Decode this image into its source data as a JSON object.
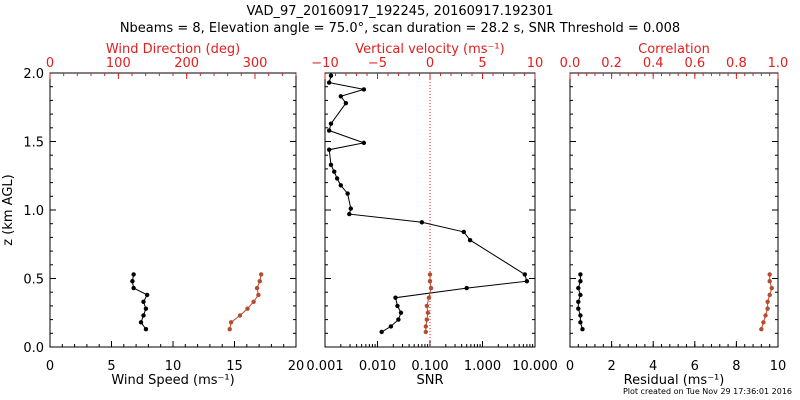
{
  "header": {
    "title_line1": "VAD_97_20160917_192245, 20160917.192301",
    "title_line2": "Nbeams = 8, Elevation angle = 75.0°, scan duration = 28.2 s, SNR Threshold = 0.008"
  },
  "footer": {
    "text": "Plot created on Tue Nov 29 17:36:01 2016"
  },
  "colors": {
    "red": "#e02020",
    "black": "#000000",
    "marker_red": "#b84a2e"
  },
  "chart_data": [
    {
      "type": "line",
      "id": "wind",
      "ylabel": "z (km AGL)",
      "ylim": [
        0,
        2.0
      ],
      "y_ticks": [
        0.0,
        0.5,
        1.0,
        1.5,
        2.0
      ],
      "y_tick_labels": [
        "0.0",
        "0.5",
        "1.0",
        "1.5",
        "2.0"
      ],
      "bottom_axis": {
        "label": "Wind Speed (ms⁻¹)",
        "range": [
          0,
          20
        ],
        "ticks": [
          0,
          5,
          10,
          15,
          20
        ],
        "tick_labels": [
          "0",
          "5",
          "10",
          "15",
          "20"
        ]
      },
      "top_axis": {
        "label": "Wind Direction (deg)",
        "range": [
          0,
          360
        ],
        "ticks": [
          0,
          100,
          200,
          300
        ],
        "tick_labels": [
          "0",
          "100",
          "200",
          "300"
        ],
        "color": "#e02020"
      },
      "series": [
        {
          "axis": "bottom",
          "color": "#000000",
          "x": [
            7.8,
            7.4,
            7.6,
            7.8,
            7.6,
            7.9,
            6.8,
            6.7,
            6.8
          ],
          "y": [
            0.13,
            0.18,
            0.23,
            0.28,
            0.33,
            0.38,
            0.43,
            0.48,
            0.53
          ]
        },
        {
          "axis": "top",
          "color": "#b84a2e",
          "x": [
            263,
            265,
            278,
            289,
            298,
            305,
            303,
            307,
            309
          ],
          "y": [
            0.13,
            0.18,
            0.23,
            0.28,
            0.33,
            0.38,
            0.43,
            0.48,
            0.53
          ]
        }
      ]
    },
    {
      "type": "line",
      "id": "snr",
      "ylim": [
        0,
        2.0
      ],
      "bottom_axis": {
        "label": "SNR",
        "scale": "log",
        "range": [
          0.001,
          10
        ],
        "ticks": [
          0.001,
          0.01,
          0.1,
          1,
          10
        ],
        "tick_labels": [
          "0.001",
          "0.010",
          "0.100",
          "1.000",
          "10.000"
        ]
      },
      "top_axis": {
        "label": "Vertical velocity (ms⁻¹)",
        "range": [
          -10,
          10
        ],
        "ticks": [
          -10,
          -5,
          0,
          5,
          10
        ],
        "tick_labels": [
          "−10",
          "−5",
          "0",
          "5",
          "10"
        ],
        "color": "#e02020"
      },
      "reference_line": {
        "axis": "top",
        "value": 0,
        "style": "dotted",
        "color": "#e02020"
      },
      "series": [
        {
          "axis": "bottom",
          "scale": "log",
          "color": "#000000",
          "x": [
            0.012,
            0.018,
            0.025,
            0.028,
            0.024,
            0.022,
            0.5,
            7.0,
            6.4,
            0.58,
            0.44,
            0.07,
            0.0029,
            0.0031,
            0.0027,
            0.002,
            0.0017,
            0.0015,
            0.0013,
            0.0012,
            0.0055,
            0.0012,
            0.0013,
            0.0025,
            0.002,
            0.0055,
            0.0012,
            0.0013
          ],
          "y": [
            0.11,
            0.15,
            0.2,
            0.25,
            0.3,
            0.36,
            0.43,
            0.48,
            0.53,
            0.78,
            0.84,
            0.91,
            0.97,
            1.01,
            1.12,
            1.18,
            1.23,
            1.28,
            1.33,
            1.44,
            1.49,
            1.58,
            1.63,
            1.78,
            1.83,
            1.88,
            1.93,
            1.98
          ]
        },
        {
          "axis": "top",
          "color": "#b84a2e",
          "x": [
            -0.4,
            -0.4,
            -0.3,
            -0.2,
            -0.3,
            -0.1,
            0.1,
            0.0,
            0.0
          ],
          "y": [
            0.11,
            0.15,
            0.2,
            0.25,
            0.3,
            0.36,
            0.43,
            0.48,
            0.53
          ]
        }
      ]
    },
    {
      "type": "line",
      "id": "residual",
      "ylim": [
        0,
        2.0
      ],
      "bottom_axis": {
        "label": "Residual (ms⁻¹)",
        "range": [
          0,
          10
        ],
        "ticks": [
          0,
          2,
          4,
          6,
          8,
          10
        ],
        "tick_labels": [
          "0",
          "2",
          "4",
          "6",
          "8",
          "10"
        ]
      },
      "top_axis": {
        "label": "Correlation",
        "range": [
          0,
          1
        ],
        "ticks": [
          0,
          0.2,
          0.4,
          0.6,
          0.8,
          1.0
        ],
        "tick_labels": [
          "0.0",
          "0.2",
          "0.4",
          "0.6",
          "0.8",
          "1.0"
        ],
        "color": "#e02020"
      },
      "series": [
        {
          "axis": "bottom",
          "color": "#000000",
          "x": [
            0.6,
            0.5,
            0.5,
            0.4,
            0.4,
            0.5,
            0.4,
            0.5,
            0.5
          ],
          "y": [
            0.13,
            0.18,
            0.23,
            0.28,
            0.33,
            0.38,
            0.43,
            0.48,
            0.53
          ]
        },
        {
          "axis": "top",
          "color": "#b84a2e",
          "x": [
            0.92,
            0.93,
            0.94,
            0.95,
            0.95,
            0.96,
            0.97,
            0.96,
            0.96
          ],
          "y": [
            0.13,
            0.18,
            0.23,
            0.28,
            0.33,
            0.38,
            0.43,
            0.48,
            0.53
          ]
        }
      ]
    }
  ]
}
